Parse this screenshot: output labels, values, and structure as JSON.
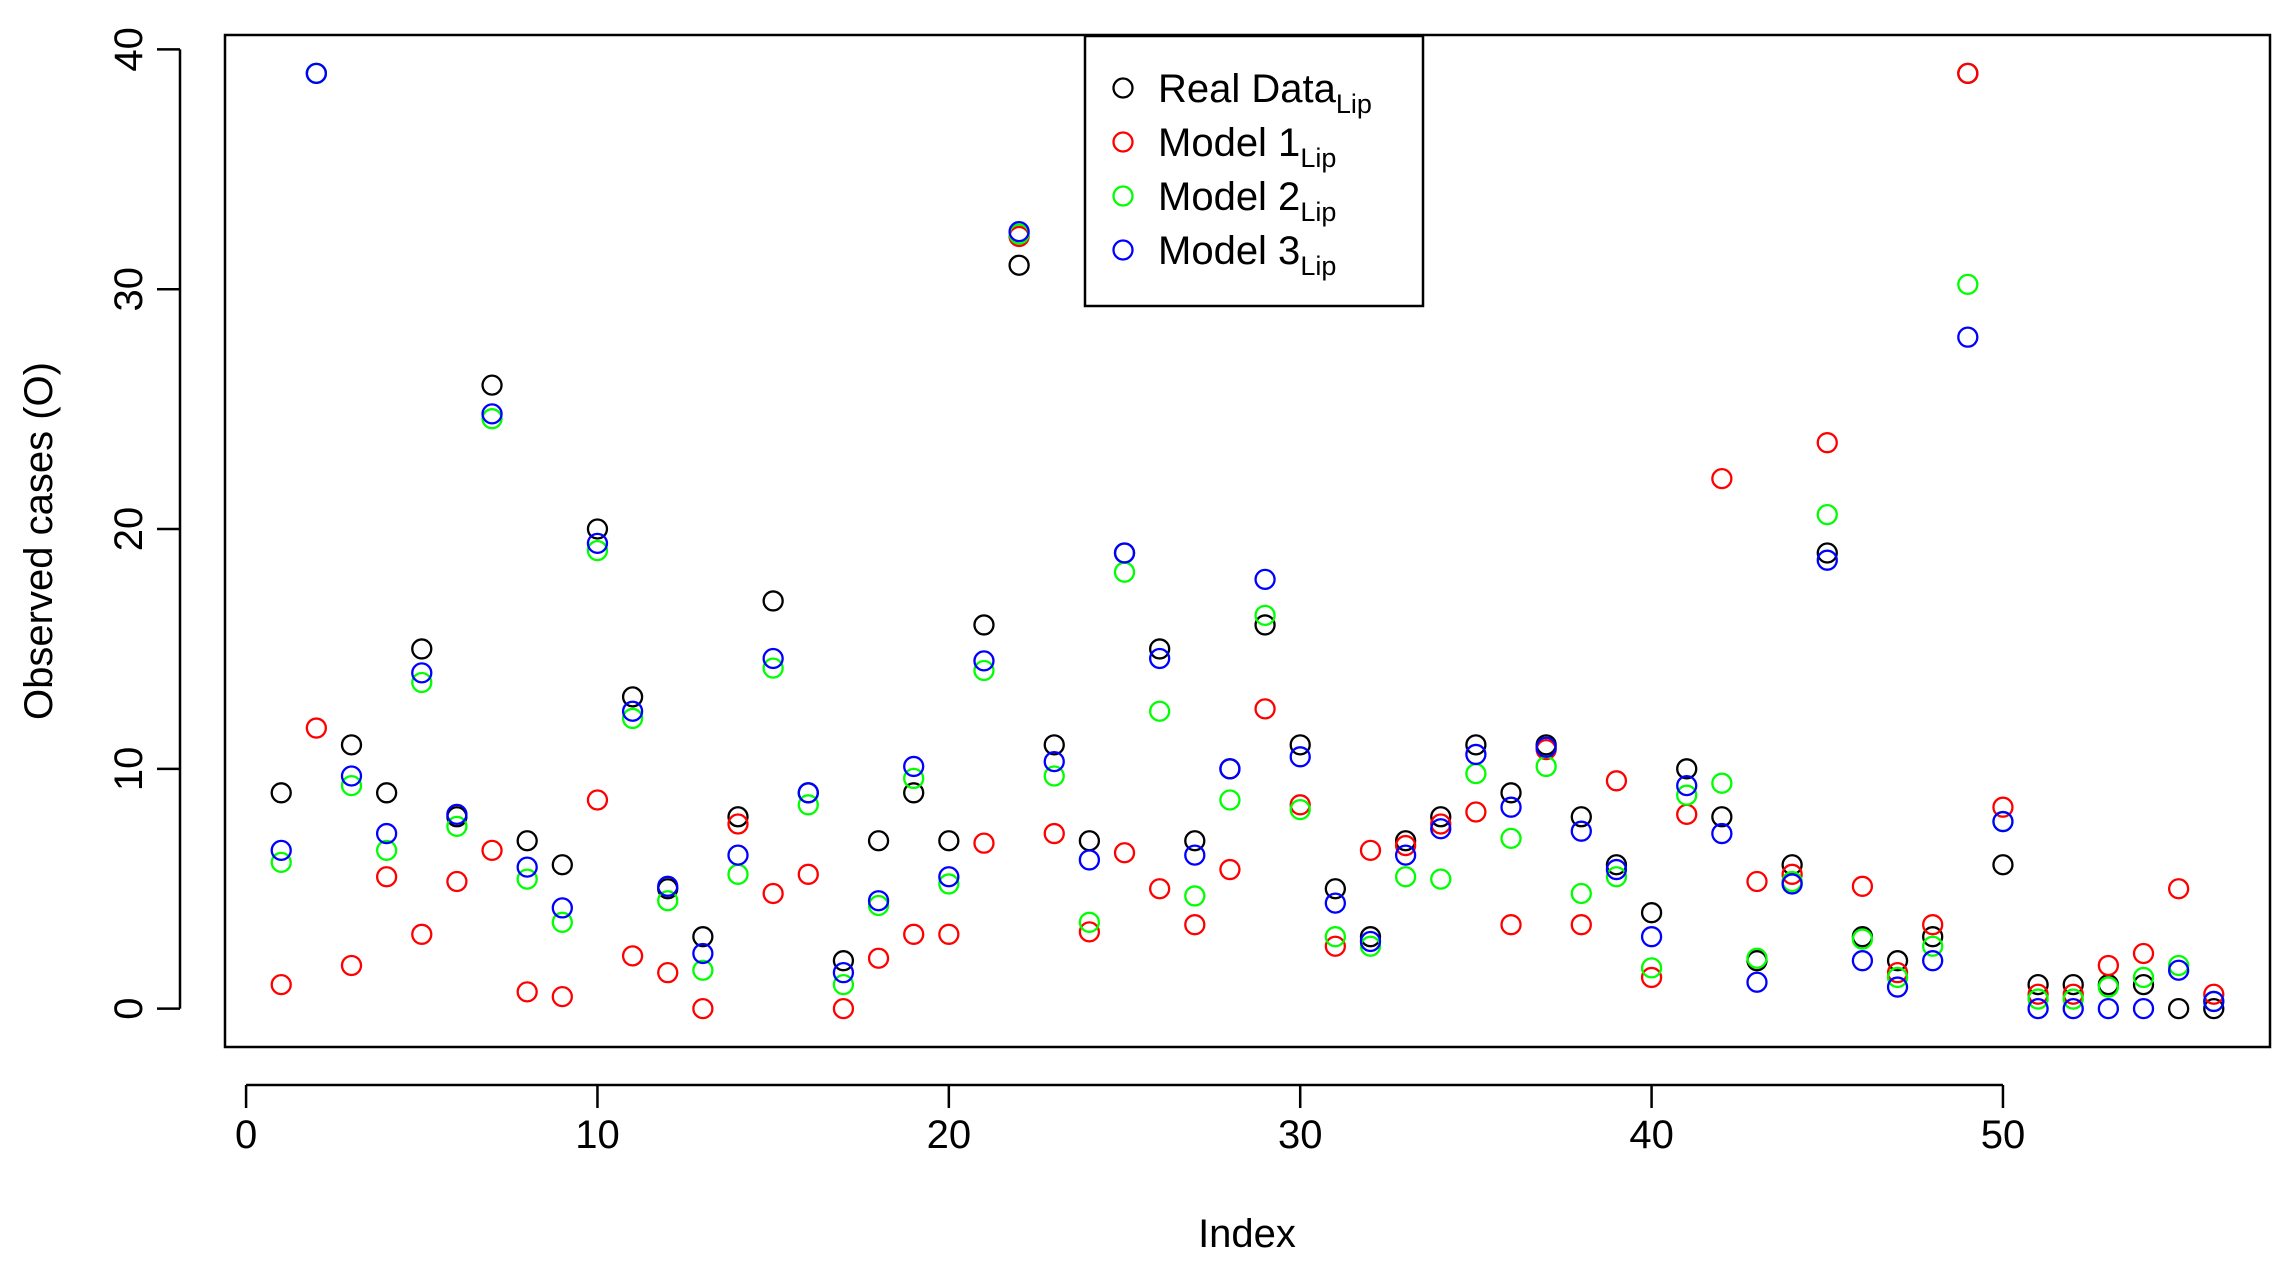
{
  "chart_data": {
    "type": "scatter",
    "title": "",
    "xlabel": "Index",
    "ylabel": "Observed cases (O)",
    "xlim": [
      -0.6,
      57.6
    ],
    "ylim": [
      -1.6,
      40.6
    ],
    "x_ticks": [
      "0",
      "10",
      "20",
      "30",
      "40",
      "50"
    ],
    "y_ticks": [
      "0",
      "10",
      "20",
      "30",
      "40"
    ],
    "x_tick_values": [
      0,
      10,
      20,
      30,
      40,
      50
    ],
    "y_tick_values": [
      0,
      10,
      20,
      30,
      40
    ],
    "grid": false,
    "legend_position": "top-center",
    "series": [
      {
        "name": "Real Data",
        "subscript": "Lip",
        "color": "#000000",
        "values": [
          9,
          39,
          11,
          9,
          15,
          8,
          26,
          7,
          6,
          20,
          13,
          5,
          3,
          8,
          17,
          9,
          2,
          7,
          9,
          7,
          16,
          31,
          11,
          7,
          19,
          15,
          7,
          10,
          16,
          11,
          5,
          3,
          7,
          8,
          11,
          9,
          11,
          8,
          6,
          4,
          10,
          8,
          2,
          6,
          19,
          3,
          2,
          3,
          39,
          6,
          1,
          1,
          1,
          1,
          0,
          0
        ]
      },
      {
        "name": "Model 1",
        "subscript": "Lip",
        "color": "#ff0000",
        "values": [
          1,
          11.7,
          1.8,
          5.5,
          3.1,
          5.3,
          6.6,
          0.7,
          0.5,
          8.7,
          2.2,
          1.5,
          0,
          7.7,
          4.8,
          5.6,
          0,
          2.1,
          3.1,
          3.1,
          6.9,
          32.2,
          7.3,
          3.2,
          6.5,
          5.0,
          3.5,
          5.8,
          12.5,
          8.5,
          2.6,
          6.6,
          6.8,
          7.7,
          8.2,
          3.5,
          10.8,
          3.5,
          9.5,
          1.3,
          8.1,
          22.1,
          5.3,
          5.6,
          23.6,
          5.1,
          1.5,
          3.5,
          39,
          8.4,
          0.6,
          0.6,
          1.8,
          2.3,
          5.0,
          0.6
        ]
      },
      {
        "name": "Model 2",
        "subscript": "Lip",
        "color": "#00ff00",
        "values": [
          6.1,
          39,
          9.3,
          6.6,
          13.6,
          7.6,
          24.6,
          5.4,
          3.6,
          19.1,
          12.1,
          4.5,
          1.6,
          5.6,
          14.2,
          8.5,
          1.0,
          4.3,
          9.6,
          5.2,
          14.1,
          32.3,
          9.7,
          3.6,
          18.2,
          12.4,
          4.7,
          8.7,
          16.4,
          8.3,
          3.0,
          2.6,
          5.5,
          5.4,
          9.8,
          7.1,
          10.1,
          4.8,
          5.5,
          1.7,
          8.9,
          9.4,
          2.1,
          5.3,
          20.6,
          2.9,
          1.3,
          2.6,
          30.2,
          7.8,
          0.4,
          0.4,
          0.9,
          1.3,
          1.8,
          0.3
        ]
      },
      {
        "name": "Model 3",
        "subscript": "Lip",
        "color": "#0000ff",
        "values": [
          6.6,
          39,
          9.7,
          7.3,
          14.0,
          8.1,
          24.8,
          5.9,
          4.2,
          19.4,
          12.4,
          5.1,
          2.3,
          6.4,
          14.6,
          9.0,
          1.5,
          4.5,
          10.1,
          5.5,
          14.5,
          32.4,
          10.3,
          6.2,
          19.0,
          14.6,
          6.4,
          10.0,
          17.9,
          10.5,
          4.4,
          2.8,
          6.4,
          7.5,
          10.6,
          8.4,
          10.9,
          7.4,
          5.8,
          3.0,
          9.3,
          7.3,
          1.1,
          5.2,
          18.7,
          2.0,
          0.9,
          2.0,
          28.0,
          7.8,
          0,
          0,
          0,
          0,
          1.6,
          0.3
        ]
      }
    ]
  }
}
